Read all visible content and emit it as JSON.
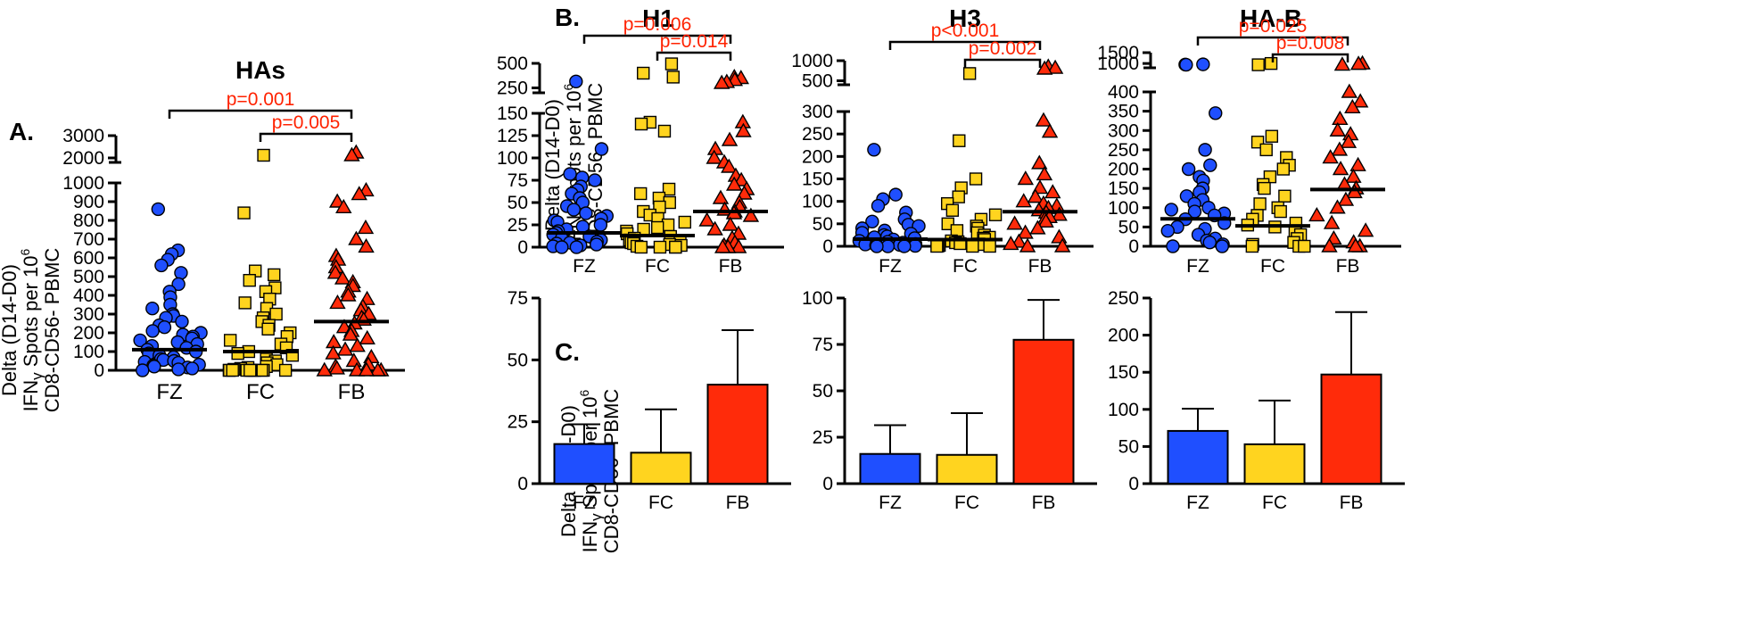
{
  "colors": {
    "FZ": "#1f4fff",
    "FC": "#ffd41f",
    "FB": "#ff2b0a"
  },
  "panel_labels": {
    "A": "A.",
    "B": "B.",
    "C": "C."
  },
  "ylabel": {
    "line1": "Delta (D14-D0)",
    "line2_pre": "IFN",
    "line2_gamma": "γ",
    "line2_mid": " Spots per 10",
    "line2_sup": "6",
    "line3": "CD8-CD56- PBMC"
  },
  "chart_data": [
    {
      "id": "HAs",
      "panel": "A",
      "type": "scatter",
      "title": "HAs",
      "categories": [
        "FZ",
        "FC",
        "FB"
      ],
      "ylim_lower": [
        0,
        1000
      ],
      "ylim_upper": [
        1800,
        3000
      ],
      "lower_ticks": [
        "0",
        "100",
        "200",
        "300",
        "400",
        "500",
        "600",
        "700",
        "800",
        "900",
        "1000"
      ],
      "upper_ticks": [
        "2000",
        "3000"
      ],
      "medians": [
        110,
        100,
        260
      ],
      "pvalues": [
        {
          "from": 0,
          "to": 2,
          "label": "p=0.001"
        },
        {
          "from": 1,
          "to": 2,
          "label": "p=0.005"
        }
      ],
      "series": [
        {
          "name": "FZ",
          "marker": "circle",
          "values": [
            860,
            640,
            620,
            590,
            560,
            520,
            460,
            420,
            390,
            350,
            330,
            300,
            290,
            280,
            260,
            240,
            230,
            210,
            200,
            190,
            180,
            170,
            160,
            150,
            140,
            130,
            120,
            110,
            100,
            90,
            80,
            70,
            60,
            55,
            50,
            45,
            40,
            30,
            25,
            20,
            15,
            10,
            5,
            0
          ]
        },
        {
          "name": "FC",
          "marker": "square",
          "values": [
            2120,
            840,
            530,
            510,
            480,
            440,
            420,
            380,
            360,
            330,
            300,
            280,
            260,
            240,
            220,
            200,
            180,
            160,
            140,
            120,
            100,
            90,
            80,
            60,
            50,
            40,
            30,
            20,
            15,
            10,
            5,
            0,
            0,
            0,
            0,
            0,
            0,
            0,
            0,
            0,
            0,
            0
          ]
        },
        {
          "name": "FB",
          "marker": "triangle",
          "values": [
            2240,
            2120,
            960,
            940,
            900,
            870,
            760,
            700,
            660,
            610,
            590,
            550,
            520,
            490,
            470,
            450,
            420,
            400,
            380,
            360,
            340,
            320,
            300,
            280,
            270,
            250,
            230,
            210,
            190,
            170,
            150,
            130,
            110,
            90,
            70,
            50,
            30,
            20,
            10,
            0,
            0,
            0,
            0,
            0
          ]
        }
      ]
    },
    {
      "id": "H1",
      "panel": "B",
      "type": "scatter",
      "title": "H1",
      "categories": [
        "FZ",
        "FC",
        "FB"
      ],
      "ylim_lower": [
        0,
        150
      ],
      "ylim_upper": [
        200,
        500
      ],
      "lower_ticks": [
        "0",
        "25",
        "50",
        "75",
        "100",
        "125",
        "150"
      ],
      "upper_ticks": [
        "250",
        "500"
      ],
      "medians": [
        16,
        13,
        40
      ],
      "pvalues": [
        {
          "from": 0,
          "to": 2,
          "label": "p=0.006"
        },
        {
          "from": 1,
          "to": 2,
          "label": "p=0.014"
        }
      ],
      "series": [
        {
          "name": "FZ",
          "marker": "circle",
          "values": [
            315,
            110,
            82,
            78,
            75,
            68,
            64,
            60,
            55,
            50,
            46,
            42,
            38,
            35,
            32,
            30,
            28,
            25,
            23,
            20,
            18,
            16,
            14,
            12,
            10,
            8,
            6,
            5,
            4,
            3,
            2,
            1,
            0,
            0
          ]
        },
        {
          "name": "FC",
          "marker": "square",
          "values": [
            495,
            400,
            360,
            140,
            138,
            130,
            65,
            60,
            55,
            50,
            45,
            40,
            36,
            32,
            28,
            25,
            22,
            20,
            18,
            15,
            12,
            10,
            8,
            6,
            5,
            4,
            3,
            2,
            1,
            0,
            0,
            0,
            0
          ]
        },
        {
          "name": "FB",
          "marker": "triangle",
          "values": [
            360,
            350,
            330,
            310,
            300,
            140,
            130,
            120,
            110,
            100,
            95,
            90,
            80,
            75,
            70,
            65,
            60,
            55,
            50,
            45,
            42,
            40,
            38,
            35,
            30,
            25,
            20,
            15,
            10,
            5,
            2,
            0,
            0,
            0
          ]
        }
      ]
    },
    {
      "id": "H3",
      "panel": "B",
      "type": "scatter",
      "title": "H3",
      "categories": [
        "FZ",
        "FC",
        "FB"
      ],
      "ylim_lower": [
        0,
        300
      ],
      "ylim_upper": [
        400,
        1000
      ],
      "lower_ticks": [
        "0",
        "50",
        "100",
        "150",
        "200",
        "250",
        "300"
      ],
      "upper_ticks": [
        "500",
        "1000"
      ],
      "medians": [
        16,
        15,
        77
      ],
      "pvalues": [
        {
          "from": 0,
          "to": 2,
          "label": "p<0.001"
        },
        {
          "from": 1,
          "to": 2,
          "label": "p=0.002"
        }
      ],
      "series": [
        {
          "name": "FZ",
          "marker": "circle",
          "values": [
            215,
            115,
            105,
            90,
            75,
            60,
            55,
            48,
            45,
            40,
            35,
            30,
            28,
            25,
            22,
            20,
            18,
            15,
            12,
            10,
            8,
            6,
            5,
            4,
            3,
            2,
            1,
            0,
            0,
            0
          ]
        },
        {
          "name": "FC",
          "marker": "square",
          "values": [
            680,
            235,
            150,
            130,
            110,
            95,
            80,
            70,
            60,
            50,
            45,
            40,
            35,
            30,
            25,
            20,
            18,
            15,
            12,
            10,
            8,
            6,
            5,
            4,
            3,
            2,
            1,
            0,
            0,
            0
          ]
        },
        {
          "name": "FB",
          "marker": "triangle",
          "values": [
            850,
            820,
            800,
            280,
            255,
            185,
            160,
            150,
            130,
            120,
            110,
            100,
            95,
            90,
            85,
            80,
            75,
            70,
            65,
            60,
            55,
            50,
            40,
            30,
            20,
            10,
            5,
            0,
            0
          ]
        }
      ]
    },
    {
      "id": "HA-B",
      "panel": "B",
      "type": "scatter",
      "title": "HA-B",
      "categories": [
        "FZ",
        "FC",
        "FB"
      ],
      "ylim_lower": [
        0,
        400
      ],
      "ylim_upper": [
        800,
        1500
      ],
      "lower_ticks": [
        "0",
        "50",
        "100",
        "150",
        "200",
        "250",
        "300",
        "350",
        "400"
      ],
      "upper_ticks": [
        "1000",
        "1500"
      ],
      "medians": [
        71,
        53,
        147
      ],
      "pvalues": [
        {
          "from": 0,
          "to": 2,
          "label": "p=0.025"
        },
        {
          "from": 1,
          "to": 2,
          "label": "p=0.008"
        }
      ],
      "series": [
        {
          "name": "FZ",
          "marker": "circle",
          "values": [
            960,
            950,
            940,
            345,
            250,
            210,
            200,
            180,
            170,
            150,
            140,
            130,
            120,
            110,
            100,
            95,
            90,
            85,
            80,
            70,
            60,
            50,
            45,
            40,
            30,
            20,
            15,
            10,
            5,
            0,
            0
          ]
        },
        {
          "name": "FC",
          "marker": "square",
          "values": [
            1000,
            940,
            285,
            270,
            250,
            230,
            210,
            200,
            180,
            160,
            150,
            130,
            110,
            100,
            90,
            80,
            70,
            60,
            55,
            50,
            40,
            30,
            20,
            10,
            5,
            0,
            0,
            0
          ]
        },
        {
          "name": "FB",
          "marker": "triangle",
          "values": [
            1000,
            980,
            940,
            400,
            375,
            360,
            330,
            300,
            290,
            270,
            250,
            230,
            210,
            200,
            180,
            160,
            150,
            140,
            120,
            100,
            80,
            60,
            40,
            20,
            10,
            0,
            0,
            0
          ]
        }
      ]
    },
    {
      "id": "H1-bar",
      "panel": "C",
      "type": "bar",
      "categories": [
        "FZ",
        "FC",
        "FB"
      ],
      "values": [
        16,
        12.5,
        40
      ],
      "errors": [
        24,
        30,
        62
      ],
      "ylim": [
        0,
        75
      ],
      "ticks": [
        "0",
        "25",
        "50",
        "75"
      ]
    },
    {
      "id": "H3-bar",
      "panel": "C",
      "type": "bar",
      "categories": [
        "FZ",
        "FC",
        "FB"
      ],
      "values": [
        16,
        15.5,
        77.5
      ],
      "errors": [
        31.5,
        38,
        99
      ],
      "ylim": [
        0,
        100
      ],
      "ticks": [
        "0",
        "25",
        "50",
        "75",
        "100"
      ]
    },
    {
      "id": "HAB-bar",
      "panel": "C",
      "type": "bar",
      "categories": [
        "FZ",
        "FC",
        "FB"
      ],
      "values": [
        71,
        53,
        147
      ],
      "errors": [
        101,
        112,
        231
      ],
      "ylim": [
        0,
        250
      ],
      "ticks": [
        "0",
        "50",
        "100",
        "150",
        "200",
        "250"
      ]
    }
  ]
}
